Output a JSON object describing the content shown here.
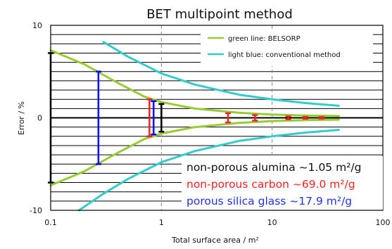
{
  "chart_data": {
    "type": "line",
    "title": "BET multipoint method",
    "xlabel": "Total surface area / m²",
    "ylabel": "Error / %",
    "x_scale": "log",
    "xlim": [
      0.1,
      100
    ],
    "ylim": [
      -10,
      10
    ],
    "x_ticks": [
      "0.1",
      "1",
      "10",
      "100"
    ],
    "y_ticks": [
      "10",
      "0",
      "-10"
    ],
    "grid": {
      "horizontal_step": 1,
      "vertical_dashed_at": [
        1,
        10
      ]
    },
    "legend_position": "top-right",
    "legend": [
      {
        "label": "green line: BELSORP",
        "color": "#99cc33"
      },
      {
        "label": "light blue: conventional method",
        "color": "#33cccc"
      }
    ],
    "series": [
      {
        "name": "green line: BELSORP",
        "color": "#99cc33",
        "role": "upper",
        "x": [
          0.1,
          0.2,
          0.4,
          0.7,
          1,
          2,
          5,
          10,
          20,
          40
        ],
        "y": [
          7.3,
          5.8,
          3.8,
          2.3,
          1.7,
          1.0,
          0.55,
          0.35,
          0.25,
          0.2
        ]
      },
      {
        "name": "green line: BELSORP",
        "color": "#99cc33",
        "role": "lower",
        "x": [
          0.1,
          0.2,
          0.4,
          0.7,
          1,
          2,
          5,
          10,
          20,
          40
        ],
        "y": [
          -7.3,
          -5.8,
          -3.8,
          -2.3,
          -1.7,
          -1.0,
          -0.55,
          -0.35,
          -0.25,
          -0.2
        ]
      },
      {
        "name": "light blue: conventional method",
        "color": "#33cccc",
        "role": "upper",
        "x": [
          0.3,
          0.5,
          1,
          2,
          5,
          10,
          20,
          40
        ],
        "y": [
          8.2,
          6.6,
          4.8,
          3.6,
          2.5,
          2.0,
          1.6,
          1.3
        ]
      },
      {
        "name": "light blue: conventional method",
        "color": "#33cccc",
        "role": "lower",
        "x": [
          0.18,
          0.3,
          0.5,
          1,
          2,
          5,
          10,
          20,
          40
        ],
        "y": [
          -10,
          -8.2,
          -6.6,
          -4.8,
          -3.6,
          -2.5,
          -2.0,
          -1.6,
          -1.3
        ]
      }
    ],
    "error_bars": [
      {
        "sample": "non-porous alumina",
        "color": "#000000",
        "x": 0.1,
        "low": -7.0,
        "high": 7.0
      },
      {
        "sample": "porous silica glass",
        "color": "#0000ff",
        "x": 0.27,
        "low": -5.0,
        "high": 5.0
      },
      {
        "sample": "non-porous carbon",
        "color": "#ee2222",
        "x": 0.78,
        "low": -2.0,
        "high": 2.0
      },
      {
        "sample": "porous silica glass",
        "color": "#0000ff",
        "x": 0.85,
        "low": -1.8,
        "high": 1.8
      },
      {
        "sample": "non-porous alumina",
        "color": "#000000",
        "x": 1.0,
        "low": -1.5,
        "high": 1.5
      },
      {
        "sample": "non-porous carbon",
        "color": "#ee2222",
        "x": 4.0,
        "low": -0.5,
        "high": 0.5
      },
      {
        "sample": "non-porous carbon",
        "color": "#ee2222",
        "x": 7.0,
        "low": -0.3,
        "high": 0.3
      },
      {
        "sample": "non-porous carbon",
        "color": "#ee2222",
        "x": 14.0,
        "low": -0.15,
        "high": 0.15
      },
      {
        "sample": "non-porous carbon",
        "color": "#ee2222",
        "x": 20.0,
        "low": -0.1,
        "high": 0.1
      },
      {
        "sample": "non-porous carbon",
        "color": "#ee2222",
        "x": 28.0,
        "low": -0.08,
        "high": 0.08
      }
    ],
    "annotations": [
      {
        "text": "non-porous alumina ~1.05 m²/g",
        "color": "#111111"
      },
      {
        "text": "non-porous carbon ~69.0 m²/g",
        "color": "#ee2222"
      },
      {
        "text": "porous silica glass ~17.9 m²/g",
        "color": "#2233dd"
      }
    ]
  }
}
